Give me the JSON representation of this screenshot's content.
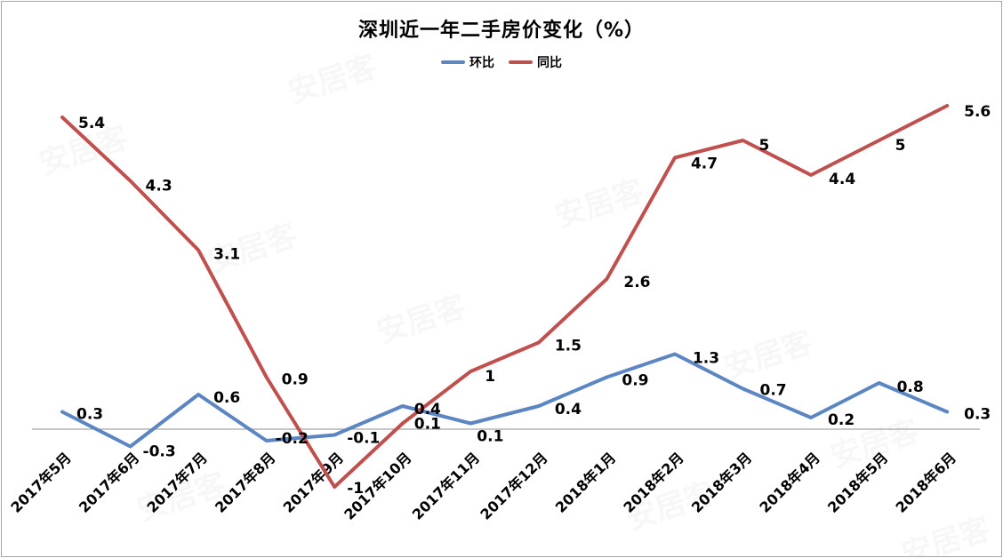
{
  "chart_data": {
    "type": "line",
    "title": "深圳近一年二手房价变化（%）",
    "categories": [
      "2017年5月",
      "2017年6月",
      "2017年7月",
      "2017年8月",
      "2017年9月",
      "2017年10月",
      "2017年11月",
      "2017年12月",
      "2018年1月",
      "2018年2月",
      "2018年3月",
      "2018年4月",
      "2018年5月",
      "2018年6月"
    ],
    "series": [
      {
        "name": "环比",
        "color": "#5b86c3",
        "values": [
          0.3,
          -0.3,
          0.6,
          -0.2,
          -0.1,
          0.4,
          0.1,
          0.4,
          0.9,
          1.3,
          0.7,
          0.2,
          0.8,
          0.3
        ]
      },
      {
        "name": "同比",
        "color": "#c0504d",
        "values": [
          5.4,
          4.3,
          3.1,
          0.9,
          -1,
          0.1,
          1,
          1.5,
          2.6,
          4.7,
          5,
          4.4,
          5,
          5.6
        ]
      }
    ],
    "legend_position": "top-center",
    "grid": false,
    "data_labels": true,
    "ylim": [
      -1.6,
      6.2
    ],
    "axis_color": "#8c8c8c",
    "label_color": "#000000",
    "border_color": "#a6a6a6",
    "background": "#ffffff"
  },
  "watermark": {
    "text": "安居客"
  }
}
